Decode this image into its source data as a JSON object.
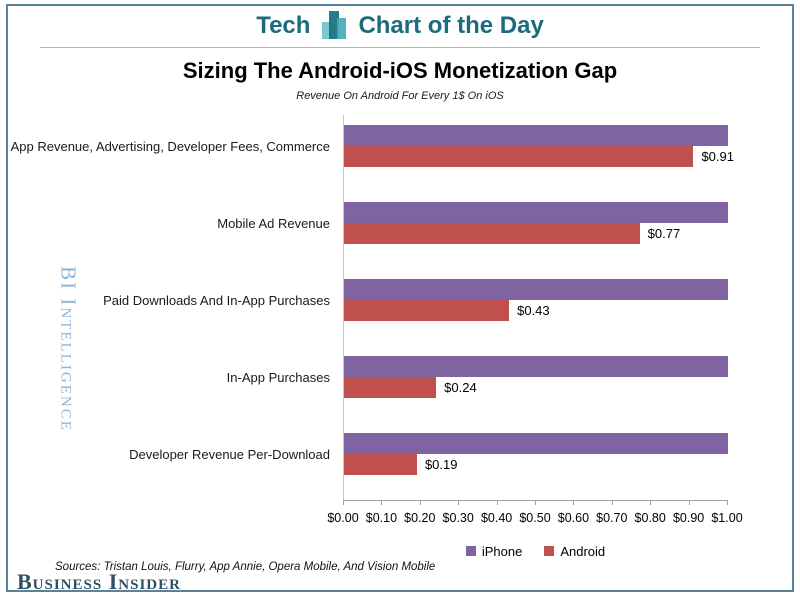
{
  "frame": {
    "border_color": "#5b819b",
    "divider_color": "#93c2d4"
  },
  "header": {
    "brand_left": "Tech",
    "brand_right": "Chart of the Day",
    "text_color": "#1c6b7d",
    "icon": "bar-chart-icon"
  },
  "chart_data": {
    "type": "bar",
    "orientation": "horizontal",
    "title": "Sizing The Android-iOS Monetization Gap",
    "subtitle": "Revenue On Android For Every 1$ On iOS",
    "categories": [
      "App Revenue, Advertising, Developer Fees, Commerce",
      "Mobile Ad Revenue",
      "Paid Downloads And In-App Purchases",
      "In-App Purchases",
      "Developer Revenue Per-Download"
    ],
    "series": [
      {
        "name": "iPhone",
        "color": "#8064A2",
        "values": [
          1.0,
          1.0,
          1.0,
          1.0,
          1.0
        ],
        "data_labels": [
          "",
          "",
          "",
          "",
          ""
        ]
      },
      {
        "name": "Android",
        "color": "#C0504D",
        "values": [
          0.91,
          0.77,
          0.43,
          0.24,
          0.19
        ],
        "data_labels": [
          "$0.91",
          "$0.77",
          "$0.43",
          "$0.24",
          "$0.19"
        ]
      }
    ],
    "xlim": [
      0,
      1
    ],
    "x_ticks": [
      "$0.00",
      "$0.10",
      "$0.20",
      "$0.30",
      "$0.40",
      "$0.50",
      "$0.60",
      "$0.70",
      "$0.80",
      "$0.90",
      "$1.00"
    ],
    "grid": false,
    "legend_position": "bottom"
  },
  "watermark": {
    "text": "BI Intelligence",
    "color": "#8db4da"
  },
  "footer": {
    "sources": "Sources: Tristan Louis, Flurry, App Annie, Opera Mobile, And Vision Mobile",
    "logo": "Business Insider",
    "logo_color": "#2f5064"
  }
}
